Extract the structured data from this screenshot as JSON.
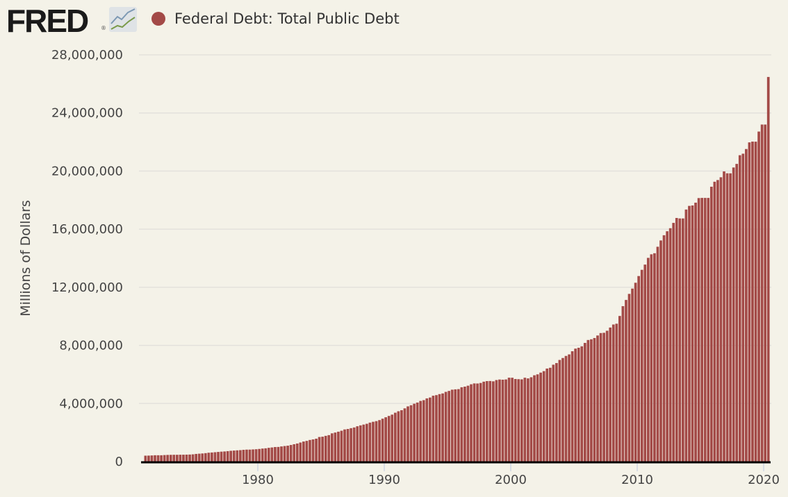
{
  "header": {
    "logo": "FRED",
    "logo_icon": "line-chart-icon",
    "legend_label": "Federal Debt: Total Public Debt"
  },
  "colors": {
    "bar": "#a34a47",
    "background": "#f4f2e8",
    "grid": "#e3e1dc",
    "baseline": "#000000"
  },
  "chart_data": {
    "type": "bar",
    "title": "",
    "ylabel": "Millions of Dollars",
    "xlabel": "",
    "ylim": [
      0,
      28000000
    ],
    "grid": true,
    "legend_position": "top-left",
    "yticks": [
      "0",
      "4,000,000",
      "8,000,000",
      "12,000,000",
      "16,000,000",
      "20,000,000",
      "24,000,000",
      "28,000,000"
    ],
    "ytick_values": [
      0,
      4000000,
      8000000,
      12000000,
      16000000,
      20000000,
      24000000,
      28000000
    ],
    "xticks": [
      "1980",
      "1990",
      "2000",
      "2010",
      "2020"
    ],
    "frequency": "quarterly",
    "start": "1971-Q1",
    "end": "2020-Q2",
    "series": [
      {
        "name": "Federal Debt: Total Public Debt",
        "values": [
          408000,
          413000,
          424000,
          437000,
          437000,
          436000,
          450000,
          460000,
          466000,
          470000,
          469000,
          474000,
          475000,
          480000,
          486000,
          500000,
          528000,
          545000,
          560000,
          582000,
          612000,
          627000,
          646000,
          666000,
          685000,
          698000,
          720000,
          744000,
          760000,
          775000,
          789000,
          811000,
          825000,
          826000,
          838000,
          852000,
          872000,
          898000,
          916000,
          949000,
          974000,
          1003000,
          1009000,
          1044000,
          1072000,
          1096000,
          1144000,
          1196000,
          1245000,
          1313000,
          1382000,
          1426000,
          1489000,
          1528000,
          1577000,
          1693000,
          1714000,
          1773000,
          1823000,
          1945000,
          2000000,
          2059000,
          2125000,
          2214000,
          2246000,
          2301000,
          2350000,
          2432000,
          2494000,
          2549000,
          2602000,
          2684000,
          2740000,
          2786000,
          2857000,
          2953000,
          3052000,
          3144000,
          3233000,
          3364000,
          3465000,
          3538000,
          3665000,
          3801000,
          3881000,
          3984000,
          4065000,
          4177000,
          4230000,
          4352000,
          4411000,
          4536000,
          4576000,
          4646000,
          4693000,
          4800000,
          4865000,
          4951000,
          4974000,
          4989000,
          5118000,
          5161000,
          5225000,
          5323000,
          5381000,
          5376000,
          5413000,
          5502000,
          5542000,
          5548000,
          5526000,
          5614000,
          5651000,
          5638000,
          5656000,
          5776000,
          5773000,
          5686000,
          5674000,
          5662000,
          5774000,
          5726000,
          5807000,
          5943000,
          6006000,
          6126000,
          6228000,
          6405000,
          6460000,
          6670000,
          6783000,
          6998000,
          7131000,
          7274000,
          7379000,
          7596000,
          7777000,
          7837000,
          7933000,
          8170000,
          8371000,
          8420000,
          8507000,
          8680000,
          8849000,
          8867000,
          9008000,
          9229000,
          9437000,
          9492000,
          10025000,
          10700000,
          11127000,
          11545000,
          11910000,
          12311000,
          12773000,
          13202000,
          13562000,
          14025000,
          14270000,
          14343000,
          14790000,
          15223000,
          15582000,
          15856000,
          16066000,
          16433000,
          16771000,
          16738000,
          16738000,
          17352000,
          17602000,
          17632000,
          17824000,
          18141000,
          18152000,
          18152000,
          18151000,
          18922000,
          19265000,
          19382000,
          19573000,
          19976000,
          19847000,
          19845000,
          20245000,
          20493000,
          21090000,
          21195000,
          21516000,
          21974000,
          22028000,
          22023000,
          22719000,
          23201000,
          23201000,
          26477000
        ]
      }
    ]
  }
}
